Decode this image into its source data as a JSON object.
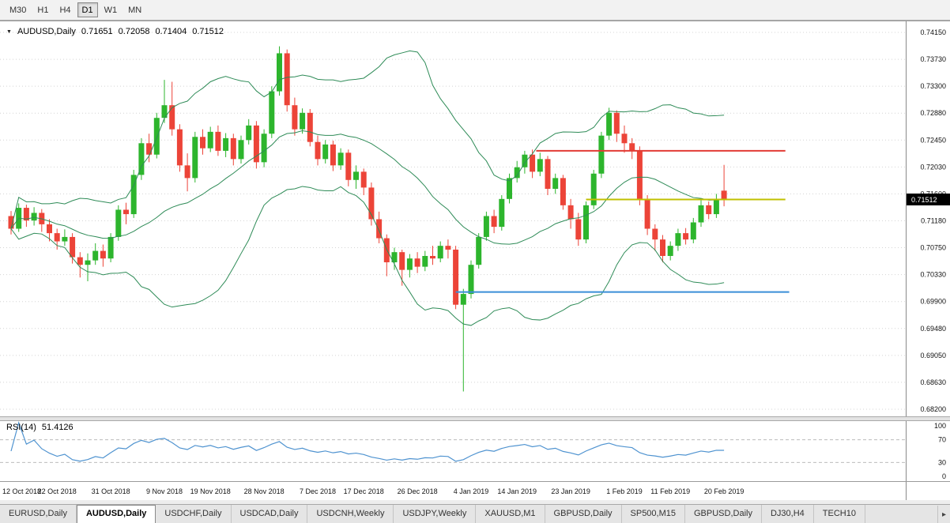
{
  "toolbar": {
    "timeframes": [
      {
        "label": "M30",
        "active": false
      },
      {
        "label": "H1",
        "active": false
      },
      {
        "label": "H4",
        "active": false
      },
      {
        "label": "D1",
        "active": true
      },
      {
        "label": "W1",
        "active": false
      },
      {
        "label": "MN",
        "active": false
      }
    ]
  },
  "price_chart": {
    "header": {
      "marker": "▼",
      "symbol": "AUDUSD,Daily",
      "open": "0.71651",
      "high": "0.72058",
      "low": "0.71404",
      "close": "0.71512"
    },
    "y_axis_labels": [
      "0.74150",
      "0.73730",
      "0.73300",
      "0.72880",
      "0.72450",
      "0.72030",
      "0.71600",
      "0.71180",
      "0.70750",
      "0.70330",
      "0.69900",
      "0.69480",
      "0.69050",
      "0.68630",
      "0.68200"
    ],
    "current_price": "0.71512"
  },
  "rsi_panel": {
    "label": "RSI(14)",
    "value": "51.4126",
    "levels": [
      "100",
      "70",
      "30",
      "0"
    ]
  },
  "x_axis": {
    "labels": [
      {
        "i": 0,
        "label": "12 Oct 2018"
      },
      {
        "i": 6,
        "label": "22 Oct 2018"
      },
      {
        "i": 13,
        "label": "31 Oct 2018"
      },
      {
        "i": 20,
        "label": "9 Nov 2018"
      },
      {
        "i": 26,
        "label": "19 Nov 2018"
      },
      {
        "i": 33,
        "label": "28 Nov 2018"
      },
      {
        "i": 40,
        "label": "7 Dec 2018"
      },
      {
        "i": 46,
        "label": "17 Dec 2018"
      },
      {
        "i": 53,
        "label": "26 Dec 2018"
      },
      {
        "i": 60,
        "label": "4 Jan 2019"
      },
      {
        "i": 66,
        "label": "14 Jan 2019"
      },
      {
        "i": 73,
        "label": "23 Jan 2019"
      },
      {
        "i": 80,
        "label": "1 Feb 2019"
      },
      {
        "i": 86,
        "label": "11 Feb 2019"
      },
      {
        "i": 93,
        "label": "20 Feb 2019"
      }
    ]
  },
  "tabs": {
    "items": [
      {
        "label": "EURUSD,Daily",
        "active": false
      },
      {
        "label": "AUDUSD,Daily",
        "active": true
      },
      {
        "label": "USDCHF,Daily",
        "active": false
      },
      {
        "label": "USDCAD,Daily",
        "active": false
      },
      {
        "label": "USDCNH,Weekly",
        "active": false
      },
      {
        "label": "USDJPY,Weekly",
        "active": false
      },
      {
        "label": "XAUUSD,M1",
        "active": false
      },
      {
        "label": "GBPUSD,Daily",
        "active": false
      },
      {
        "label": "SP500,M15",
        "active": false
      },
      {
        "label": "GBPUSD,Daily",
        "active": false
      },
      {
        "label": "DJ30,H4",
        "active": false
      },
      {
        "label": "TECH10",
        "active": false
      }
    ],
    "scroll_right": "▸"
  },
  "colors": {
    "up": "#2db52d",
    "down": "#ec4438",
    "bollinger": "#2e8b57",
    "rsi_line": "#4f93d0",
    "grid": "#d4d4d4",
    "axis_text": "#111111",
    "line_red": "#e23b34",
    "line_yellow": "#c0c000",
    "line_blue": "#3a8ed8",
    "badge_bg": "#000000",
    "badge_text": "#ffffff"
  },
  "chart_data": {
    "type": "candlestick",
    "symbol": "AUDUSD",
    "timeframe": "Daily",
    "title": "AUDUSD,Daily",
    "ohlc_current": {
      "open": 0.71651,
      "high": 0.72058,
      "low": 0.71404,
      "close": 0.71512
    },
    "y_range": [
      0.682,
      0.7415
    ],
    "rsi_value": 51.4126,
    "candles": [
      [
        0.7125,
        0.7133,
        0.7096,
        0.7105
      ],
      [
        0.7105,
        0.7145,
        0.71,
        0.7138
      ],
      [
        0.7138,
        0.7143,
        0.7108,
        0.7118
      ],
      [
        0.7118,
        0.7139,
        0.711,
        0.713
      ],
      [
        0.713,
        0.7136,
        0.71,
        0.7112
      ],
      [
        0.7112,
        0.712,
        0.7085,
        0.7098
      ],
      [
        0.7098,
        0.7105,
        0.7072,
        0.7085
      ],
      [
        0.7085,
        0.7104,
        0.7078,
        0.7092
      ],
      [
        0.7092,
        0.7098,
        0.705,
        0.706
      ],
      [
        0.706,
        0.7068,
        0.7028,
        0.7048
      ],
      [
        0.7048,
        0.7066,
        0.7022,
        0.7055
      ],
      [
        0.7055,
        0.7082,
        0.7048,
        0.707
      ],
      [
        0.707,
        0.708,
        0.7045,
        0.7058
      ],
      [
        0.7058,
        0.7098,
        0.7052,
        0.7092
      ],
      [
        0.7092,
        0.7142,
        0.7086,
        0.7135
      ],
      [
        0.7135,
        0.7146,
        0.7112,
        0.7128
      ],
      [
        0.7128,
        0.7198,
        0.7122,
        0.719
      ],
      [
        0.719,
        0.7248,
        0.7182,
        0.724
      ],
      [
        0.724,
        0.7255,
        0.721,
        0.7222
      ],
      [
        0.7222,
        0.7288,
        0.7216,
        0.728
      ],
      [
        0.728,
        0.734,
        0.7272,
        0.73
      ],
      [
        0.73,
        0.7337,
        0.7252,
        0.7262
      ],
      [
        0.7262,
        0.727,
        0.7195,
        0.7205
      ],
      [
        0.7205,
        0.7224,
        0.7164,
        0.7185
      ],
      [
        0.7185,
        0.7258,
        0.7178,
        0.725
      ],
      [
        0.725,
        0.7262,
        0.7222,
        0.7232
      ],
      [
        0.7232,
        0.7266,
        0.7226,
        0.7258
      ],
      [
        0.7258,
        0.7268,
        0.722,
        0.7228
      ],
      [
        0.7228,
        0.7256,
        0.7218,
        0.7248
      ],
      [
        0.7248,
        0.7255,
        0.7205,
        0.7215
      ],
      [
        0.7215,
        0.7252,
        0.7208,
        0.7245
      ],
      [
        0.7245,
        0.7278,
        0.7238,
        0.7268
      ],
      [
        0.7268,
        0.7275,
        0.72,
        0.721
      ],
      [
        0.721,
        0.7262,
        0.7202,
        0.7255
      ],
      [
        0.7255,
        0.733,
        0.7248,
        0.7322
      ],
      [
        0.7322,
        0.7393,
        0.7315,
        0.7382
      ],
      [
        0.7382,
        0.7388,
        0.729,
        0.73
      ],
      [
        0.73,
        0.7312,
        0.7252,
        0.7262
      ],
      [
        0.7262,
        0.7295,
        0.7255,
        0.7288
      ],
      [
        0.7288,
        0.7294,
        0.7235,
        0.7242
      ],
      [
        0.7242,
        0.7252,
        0.7205,
        0.7215
      ],
      [
        0.7215,
        0.7245,
        0.7208,
        0.7238
      ],
      [
        0.7238,
        0.7244,
        0.7196,
        0.7205
      ],
      [
        0.7205,
        0.7232,
        0.7198,
        0.7225
      ],
      [
        0.7225,
        0.723,
        0.7172,
        0.7182
      ],
      [
        0.7182,
        0.7205,
        0.7168,
        0.7195
      ],
      [
        0.7195,
        0.72,
        0.7158,
        0.717
      ],
      [
        0.717,
        0.7178,
        0.711,
        0.712
      ],
      [
        0.712,
        0.7132,
        0.7082,
        0.709
      ],
      [
        0.709,
        0.7096,
        0.703,
        0.7052
      ],
      [
        0.7052,
        0.7075,
        0.704,
        0.7068
      ],
      [
        0.7068,
        0.7072,
        0.7015,
        0.704
      ],
      [
        0.704,
        0.7065,
        0.7028,
        0.7058
      ],
      [
        0.7058,
        0.7068,
        0.7035,
        0.7045
      ],
      [
        0.7045,
        0.707,
        0.7038,
        0.7062
      ],
      [
        0.7062,
        0.7078,
        0.7048,
        0.7058
      ],
      [
        0.7058,
        0.7085,
        0.7052,
        0.7078
      ],
      [
        0.7078,
        0.7088,
        0.7058,
        0.7072
      ],
      [
        0.7072,
        0.7078,
        0.6978,
        0.6985
      ],
      [
        0.6985,
        0.701,
        0.6848,
        0.7002
      ],
      [
        0.7002,
        0.7055,
        0.6995,
        0.7048
      ],
      [
        0.7048,
        0.7098,
        0.7042,
        0.7092
      ],
      [
        0.7092,
        0.7132,
        0.7086,
        0.7125
      ],
      [
        0.7125,
        0.7135,
        0.7098,
        0.7108
      ],
      [
        0.7108,
        0.7158,
        0.7102,
        0.7152
      ],
      [
        0.7152,
        0.7192,
        0.7145,
        0.7185
      ],
      [
        0.7185,
        0.7212,
        0.7178,
        0.7202
      ],
      [
        0.7202,
        0.7228,
        0.7192,
        0.7222
      ],
      [
        0.7222,
        0.723,
        0.7185,
        0.7195
      ],
      [
        0.7195,
        0.7225,
        0.7188,
        0.7215
      ],
      [
        0.7215,
        0.722,
        0.7158,
        0.7168
      ],
      [
        0.7168,
        0.7192,
        0.716,
        0.7185
      ],
      [
        0.7185,
        0.719,
        0.7135,
        0.7142
      ],
      [
        0.7142,
        0.7152,
        0.7105,
        0.712
      ],
      [
        0.712,
        0.713,
        0.7078,
        0.7088
      ],
      [
        0.7088,
        0.7148,
        0.7082,
        0.7142
      ],
      [
        0.7142,
        0.7198,
        0.7136,
        0.7192
      ],
      [
        0.7192,
        0.7258,
        0.7185,
        0.7252
      ],
      [
        0.7252,
        0.7296,
        0.7245,
        0.7288
      ],
      [
        0.7288,
        0.7292,
        0.7242,
        0.7255
      ],
      [
        0.7255,
        0.7268,
        0.7225,
        0.724
      ],
      [
        0.724,
        0.7248,
        0.7215,
        0.7228
      ],
      [
        0.7228,
        0.7235,
        0.7142,
        0.715
      ],
      [
        0.715,
        0.7158,
        0.7095,
        0.7105
      ],
      [
        0.7105,
        0.7112,
        0.707,
        0.7088
      ],
      [
        0.7088,
        0.7095,
        0.7052,
        0.7062
      ],
      [
        0.7062,
        0.7085,
        0.7055,
        0.7078
      ],
      [
        0.7078,
        0.7105,
        0.707,
        0.7098
      ],
      [
        0.7098,
        0.7106,
        0.708,
        0.7088
      ],
      [
        0.7088,
        0.7122,
        0.7082,
        0.7115
      ],
      [
        0.7115,
        0.715,
        0.7108,
        0.7142
      ],
      [
        0.7142,
        0.7148,
        0.712,
        0.7128
      ],
      [
        0.7128,
        0.716,
        0.7122,
        0.7152
      ],
      [
        0.71651,
        0.72058,
        0.71404,
        0.71512
      ]
    ],
    "hlines": [
      {
        "price": 0.7228,
        "i1": 68.5,
        "i2": 101,
        "color_key": "line_red"
      },
      {
        "price": 0.71512,
        "i1": 75,
        "i2": 101,
        "color_key": "line_yellow"
      },
      {
        "price": 0.7005,
        "i1": 58,
        "i2": 101.5,
        "color_key": "line_blue"
      }
    ]
  }
}
